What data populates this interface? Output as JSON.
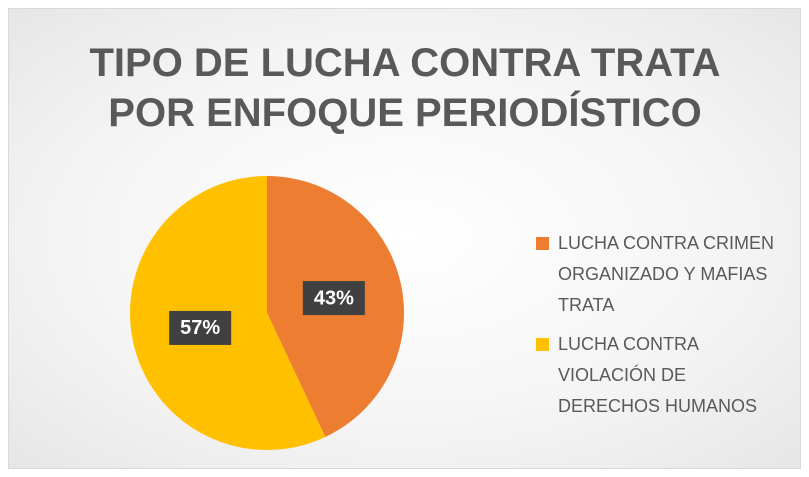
{
  "chart_data": {
    "type": "pie",
    "title": "TIPO DE LUCHA CONTRA TRATA POR ENFOQUE PERIODÍSTICO",
    "categories": [
      "LUCHA CONTRA CRIMEN ORGANIZADO Y MAFIAS TRATA",
      "LUCHA CONTRA VIOLACIÓN DE DERECHOS HUMANOS"
    ],
    "values": [
      43,
      57
    ],
    "value_labels": [
      "43%",
      "57%"
    ],
    "colors": [
      "#ED7D31",
      "#FFC000"
    ],
    "legend": "right"
  }
}
